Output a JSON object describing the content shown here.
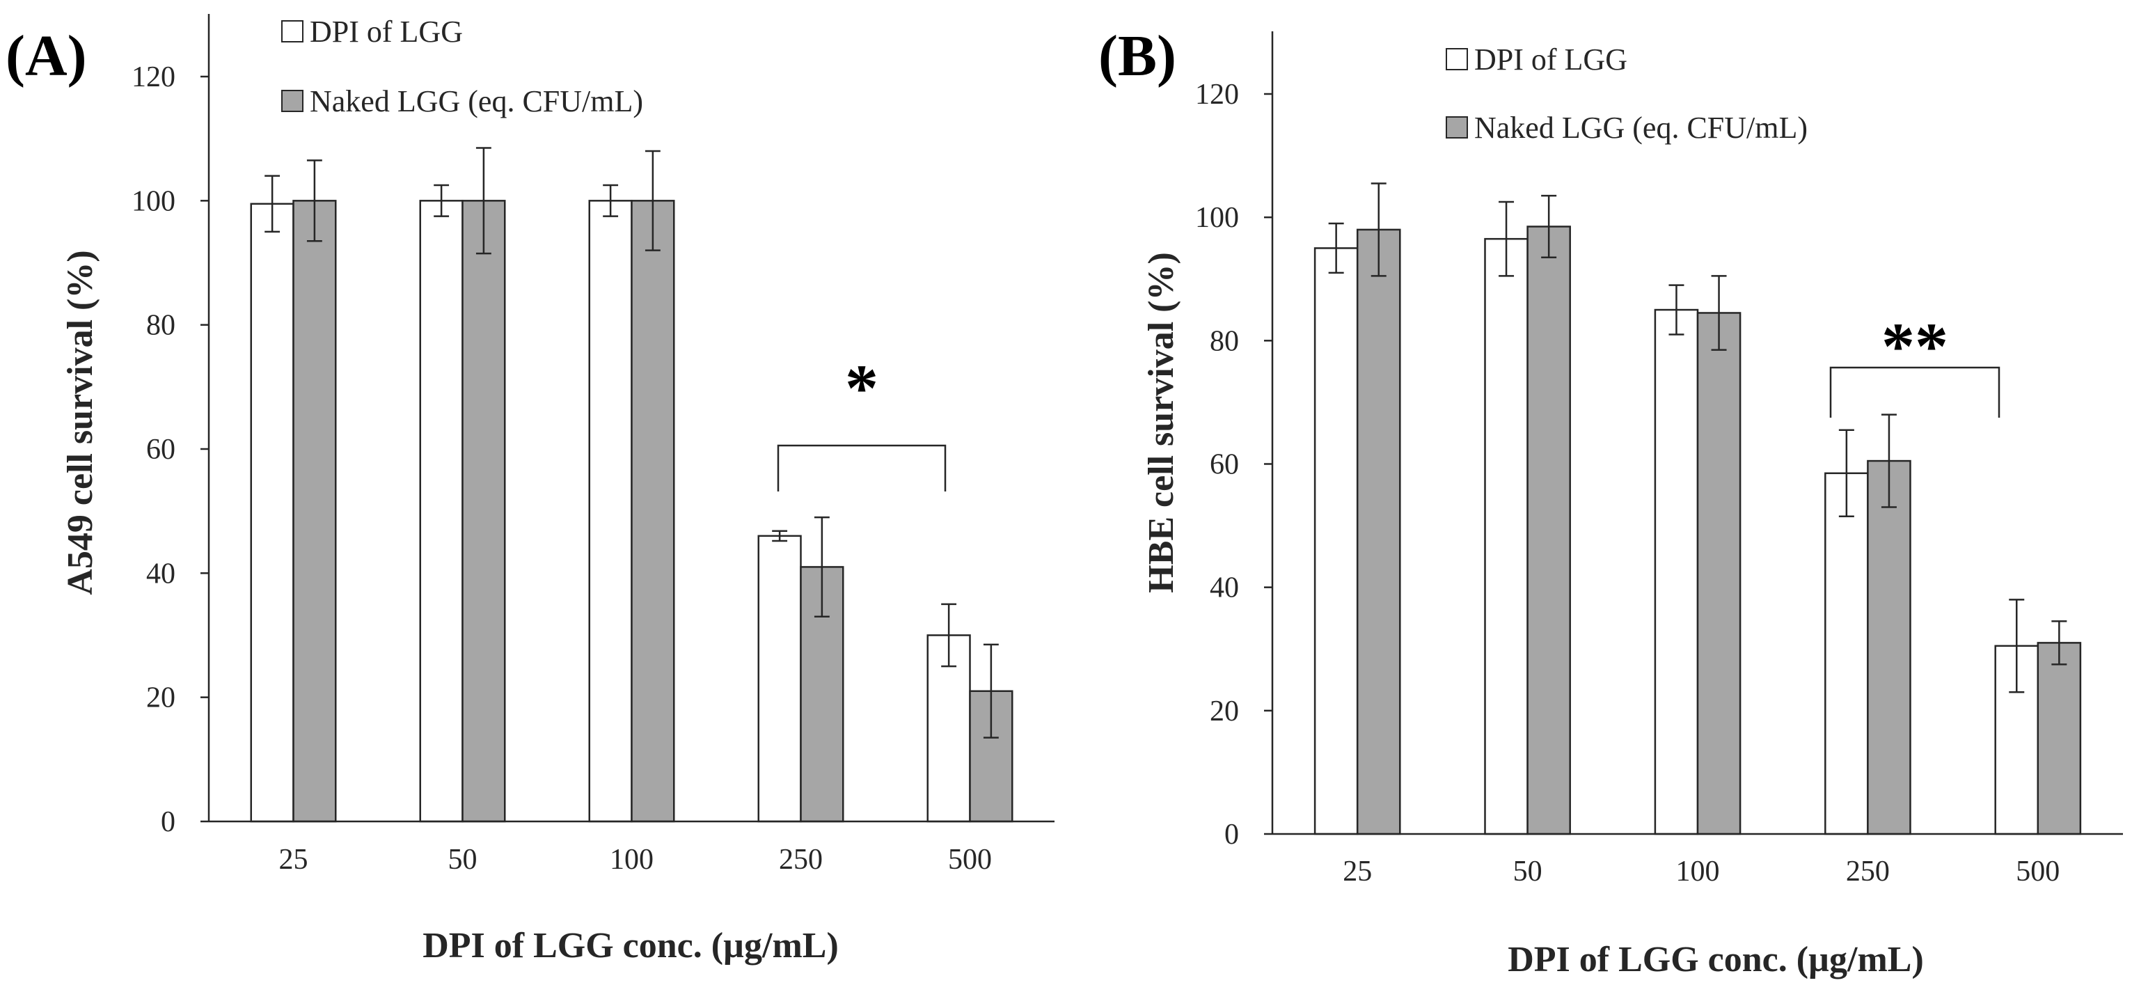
{
  "chart_data": [
    {
      "type": "bar",
      "panel_label": "(A)",
      "categories": [
        "25",
        "50",
        "100",
        "250",
        "500"
      ],
      "series": [
        {
          "name": "DPI of LGG",
          "values": [
            99.5,
            100,
            100,
            46,
            30
          ],
          "errors": [
            4.5,
            2.5,
            2.5,
            0.8,
            5
          ],
          "color": "#ffffff"
        },
        {
          "name": "Naked LGG (eq. CFU/mL)",
          "values": [
            100,
            100,
            100,
            41,
            21
          ],
          "errors": [
            6.5,
            8.5,
            8,
            8,
            7.5
          ],
          "color": "#a6a6a6"
        }
      ],
      "ylabel": "A549 cell survival (%)",
      "xlabel": "DPI of LGG conc. (µg/mL)",
      "ylim": [
        0,
        120
      ],
      "yticks": [
        0,
        20,
        40,
        60,
        80,
        100,
        120
      ],
      "grid": false,
      "legend_position": "top-left",
      "significance": {
        "text": "*",
        "between": [
          "250",
          "500"
        ]
      }
    },
    {
      "type": "bar",
      "panel_label": "(B)",
      "categories": [
        "25",
        "50",
        "100",
        "250",
        "500"
      ],
      "series": [
        {
          "name": "DPI of LGG",
          "values": [
            95,
            96.5,
            85,
            58.5,
            30.5
          ],
          "errors": [
            4,
            6,
            4,
            7,
            7.5
          ],
          "color": "#ffffff"
        },
        {
          "name": "Naked LGG (eq. CFU/mL)",
          "values": [
            98,
            98.5,
            84.5,
            60.5,
            31
          ],
          "errors": [
            7.5,
            5,
            6,
            7.5,
            3.5
          ],
          "color": "#a6a6a6"
        }
      ],
      "ylabel": "HBE cell survival (%)",
      "xlabel": "DPI of LGG conc. (µg/mL)",
      "ylim": [
        0,
        120
      ],
      "yticks": [
        0,
        20,
        40,
        60,
        80,
        100,
        120
      ],
      "grid": false,
      "legend_position": "top-left",
      "significance": {
        "text": "**",
        "between": [
          "250",
          "500"
        ]
      }
    }
  ]
}
